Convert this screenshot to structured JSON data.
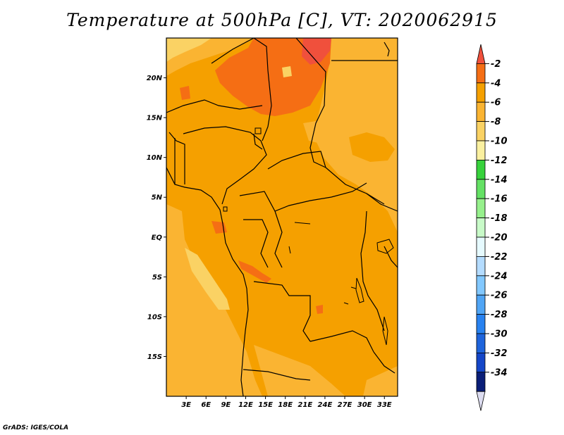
{
  "title": "Temperature at 500hPa [C], VT: 2020062915",
  "credit": "GrADS: IGES/COLA",
  "map": {
    "lon_range": [
      0,
      35
    ],
    "lat_range": [
      -20,
      25
    ],
    "lat_ticks": [
      {
        "value": 20,
        "label": "20N"
      },
      {
        "value": 15,
        "label": "15N"
      },
      {
        "value": 10,
        "label": "10N"
      },
      {
        "value": 5,
        "label": "5N"
      },
      {
        "value": 0,
        "label": "EQ"
      },
      {
        "value": -5,
        "label": "5S"
      },
      {
        "value": -10,
        "label": "10S"
      },
      {
        "value": -15,
        "label": "15S"
      }
    ],
    "lon_ticks": [
      {
        "value": 3,
        "label": "3E"
      },
      {
        "value": 6,
        "label": "6E"
      },
      {
        "value": 9,
        "label": "9E"
      },
      {
        "value": 12,
        "label": "12E"
      },
      {
        "value": 15,
        "label": "15E"
      },
      {
        "value": 18,
        "label": "18E"
      },
      {
        "value": 21,
        "label": "21E"
      },
      {
        "value": 24,
        "label": "24E"
      },
      {
        "value": 27,
        "label": "27E"
      },
      {
        "value": 30,
        "label": "30E"
      },
      {
        "value": 33,
        "label": "33E"
      }
    ]
  },
  "colorbar": {
    "labels": [
      "-2",
      "-4",
      "-6",
      "-8",
      "-10",
      "-12",
      "-14",
      "-16",
      "-18",
      "-20",
      "-22",
      "-24",
      "-26",
      "-28",
      "-30",
      "-32",
      "-34"
    ],
    "colors": [
      "#f0503c",
      "#f56e14",
      "#f5a000",
      "#fab432",
      "#fad264",
      "#faf0a0",
      "#37d23c",
      "#64e164",
      "#96f08c",
      "#c8fac8",
      "#e6faff",
      "#b4dcff",
      "#82c8ff",
      "#50a5f5",
      "#2882f0",
      "#1e64dc",
      "#1446c8",
      "#0a1e78",
      "#dcdcf0"
    ]
  },
  "colors": {
    "base": "#f5a000",
    "warm": "#f56e14",
    "warmest": "#f0503c",
    "cool": "#fab432",
    "cooler": "#fad264"
  }
}
